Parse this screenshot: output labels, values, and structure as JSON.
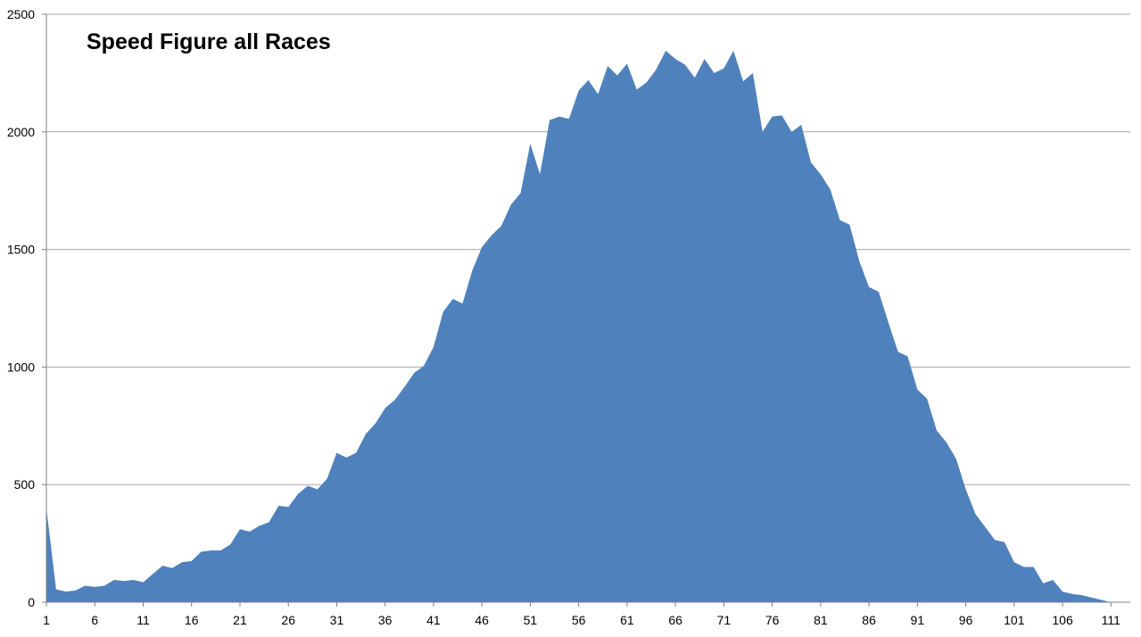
{
  "chart_data": {
    "type": "area",
    "title": "Speed Figure all Races",
    "xlabel": "",
    "ylabel": "",
    "xlim": [
      1,
      113
    ],
    "ylim": [
      0,
      2500
    ],
    "y_ticks": [
      0,
      500,
      1000,
      1500,
      2000,
      2500
    ],
    "x_ticks": [
      1,
      6,
      11,
      16,
      21,
      26,
      31,
      36,
      41,
      46,
      51,
      56,
      61,
      66,
      71,
      76,
      81,
      86,
      91,
      96,
      101,
      106,
      111
    ],
    "grid": "horizontal",
    "legend": "none",
    "fill_color": "#4F81BD",
    "grid_color": "#A6A6A6",
    "axis_color": "#808080",
    "x": [
      1,
      2,
      3,
      4,
      5,
      6,
      7,
      8,
      9,
      10,
      11,
      12,
      13,
      14,
      15,
      16,
      17,
      18,
      19,
      20,
      21,
      22,
      23,
      24,
      25,
      26,
      27,
      28,
      29,
      30,
      31,
      32,
      33,
      34,
      35,
      36,
      37,
      38,
      39,
      40,
      41,
      42,
      43,
      44,
      45,
      46,
      47,
      48,
      49,
      50,
      51,
      52,
      53,
      54,
      55,
      56,
      57,
      58,
      59,
      60,
      61,
      62,
      63,
      64,
      65,
      66,
      67,
      68,
      69,
      70,
      71,
      72,
      73,
      74,
      75,
      76,
      77,
      78,
      79,
      80,
      81,
      82,
      83,
      84,
      85,
      86,
      87,
      88,
      89,
      90,
      91,
      92,
      93,
      94,
      95,
      96,
      97,
      98,
      99,
      100,
      101,
      102,
      103,
      104,
      105,
      106,
      107,
      108,
      109,
      110,
      111,
      112
    ],
    "values": [
      400,
      55,
      45,
      50,
      70,
      65,
      70,
      95,
      90,
      95,
      85,
      120,
      155,
      145,
      170,
      175,
      215,
      220,
      220,
      245,
      310,
      300,
      325,
      340,
      410,
      405,
      460,
      495,
      480,
      525,
      635,
      615,
      635,
      715,
      760,
      825,
      860,
      915,
      975,
      1005,
      1085,
      1235,
      1290,
      1270,
      1410,
      1510,
      1560,
      1600,
      1690,
      1740,
      1950,
      1820,
      2050,
      2065,
      2055,
      2175,
      2220,
      2160,
      2280,
      2240,
      2290,
      2180,
      2210,
      2265,
      2345,
      2310,
      2285,
      2230,
      2310,
      2250,
      2270,
      2345,
      2215,
      2250,
      2000,
      2065,
      2070,
      2000,
      2030,
      1870,
      1820,
      1755,
      1625,
      1605,
      1450,
      1340,
      1320,
      1190,
      1065,
      1045,
      905,
      865,
      730,
      680,
      610,
      480,
      375,
      320,
      265,
      255,
      170,
      150,
      150,
      80,
      95,
      45,
      35,
      30,
      20,
      10,
      0,
      0
    ]
  }
}
